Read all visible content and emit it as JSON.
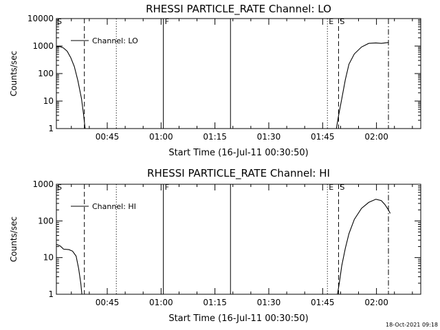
{
  "chart_data": [
    {
      "type": "line",
      "title": "RHESSI PARTICLE_RATE Channel: LO",
      "ylabel": "Counts/sec",
      "xlabel": "Start Time (16-Jul-11 00:30:50)",
      "yscale": "log",
      "ylim": [
        1,
        10000
      ],
      "xlim_min": [
        0,
        101.5
      ],
      "y_ticks": [
        {
          "value": 1,
          "label": "1"
        },
        {
          "value": 10,
          "label": "10"
        },
        {
          "value": 100,
          "label": "100"
        },
        {
          "value": 1000,
          "label": "1000"
        },
        {
          "value": 10000,
          "label": "10000"
        }
      ],
      "x_ticks": [
        {
          "value": 14.17,
          "label": "00:45"
        },
        {
          "value": 29.17,
          "label": "01:00"
        },
        {
          "value": 44.17,
          "label": "01:15"
        },
        {
          "value": 59.17,
          "label": "01:30"
        },
        {
          "value": 74.17,
          "label": "01:45"
        },
        {
          "value": 89.17,
          "label": "02:00"
        }
      ],
      "legend": {
        "label": "Channel: LO",
        "position": "top-left"
      },
      "event_lines": [
        {
          "x": 7.8,
          "style": "dashed",
          "label": ""
        },
        {
          "x": 16.7,
          "style": "dotted",
          "label": ""
        },
        {
          "x": 29.8,
          "style": "solid",
          "label": "F"
        },
        {
          "x": 48.5,
          "style": "solid",
          "label": ""
        },
        {
          "x": 75.5,
          "style": "dotted",
          "label": "E"
        },
        {
          "x": 78.6,
          "style": "dashed",
          "label": "S"
        },
        {
          "x": 92.5,
          "style": "dashdot",
          "label": ""
        }
      ],
      "corner_label": "S",
      "series": [
        {
          "name": "Channel: LO",
          "segments": [
            [
              [
                0,
                950
              ],
              [
                1,
                960
              ],
              [
                2,
                850
              ],
              [
                3,
                650
              ],
              [
                4,
                380
              ],
              [
                5,
                180
              ],
              [
                6,
                55
              ],
              [
                7,
                12
              ],
              [
                7.6,
                3
              ],
              [
                8,
                1
              ]
            ],
            [
              [
                78,
                1
              ],
              [
                78.5,
                2.5
              ],
              [
                79.5,
                12
              ],
              [
                80.5,
                60
              ],
              [
                81.5,
                220
              ],
              [
                83,
                520
              ],
              [
                85,
                920
              ],
              [
                87,
                1250
              ],
              [
                89,
                1300
              ],
              [
                90.5,
                1250
              ],
              [
                91.5,
                1300
              ],
              [
                92.5,
                1350
              ]
            ]
          ]
        }
      ]
    },
    {
      "type": "line",
      "title": "RHESSI PARTICLE_RATE Channel: HI",
      "ylabel": "Counts/sec",
      "xlabel": "Start Time (16-Jul-11 00:30:50)",
      "yscale": "log",
      "ylim": [
        1,
        1000
      ],
      "xlim_min": [
        0,
        101.5
      ],
      "y_ticks": [
        {
          "value": 1,
          "label": "1"
        },
        {
          "value": 10,
          "label": "10"
        },
        {
          "value": 100,
          "label": "100"
        },
        {
          "value": 1000,
          "label": "1000"
        }
      ],
      "x_ticks": [
        {
          "value": 14.17,
          "label": "00:45"
        },
        {
          "value": 29.17,
          "label": "01:00"
        },
        {
          "value": 44.17,
          "label": "01:15"
        },
        {
          "value": 59.17,
          "label": "01:30"
        },
        {
          "value": 74.17,
          "label": "01:45"
        },
        {
          "value": 89.17,
          "label": "02:00"
        }
      ],
      "legend": {
        "label": "Channel: HI",
        "position": "top-left"
      },
      "event_lines": [
        {
          "x": 7.8,
          "style": "dashed",
          "label": ""
        },
        {
          "x": 16.7,
          "style": "dotted",
          "label": ""
        },
        {
          "x": 29.8,
          "style": "solid",
          "label": "F"
        },
        {
          "x": 48.5,
          "style": "solid",
          "label": ""
        },
        {
          "x": 75.5,
          "style": "dotted",
          "label": "E"
        },
        {
          "x": 78.6,
          "style": "dashed",
          "label": "S"
        },
        {
          "x": 92.5,
          "style": "dashdot",
          "label": ""
        }
      ],
      "corner_label": "S",
      "series": [
        {
          "name": "Channel: HI",
          "segments": [
            [
              [
                0,
                23
              ],
              [
                1,
                21
              ],
              [
                1.5,
                19
              ],
              [
                2,
                17
              ],
              [
                3.5,
                16.5
              ],
              [
                4.5,
                15
              ],
              [
                5.5,
                11
              ],
              [
                6.2,
                5
              ],
              [
                6.8,
                2
              ],
              [
                7.1,
                1
              ]
            ],
            [
              [
                78.3,
                1
              ],
              [
                78.8,
                2
              ],
              [
                79.5,
                6
              ],
              [
                80.5,
                18
              ],
              [
                81.5,
                45
              ],
              [
                83,
                110
              ],
              [
                85,
                220
              ],
              [
                87,
                320
              ],
              [
                89,
                390
              ],
              [
                90.5,
                360
              ],
              [
                91.5,
                280
              ],
              [
                92.5,
                200
              ],
              [
                93,
                160
              ]
            ]
          ]
        }
      ]
    }
  ],
  "timestamp": "18-Oct-2021 09:18"
}
